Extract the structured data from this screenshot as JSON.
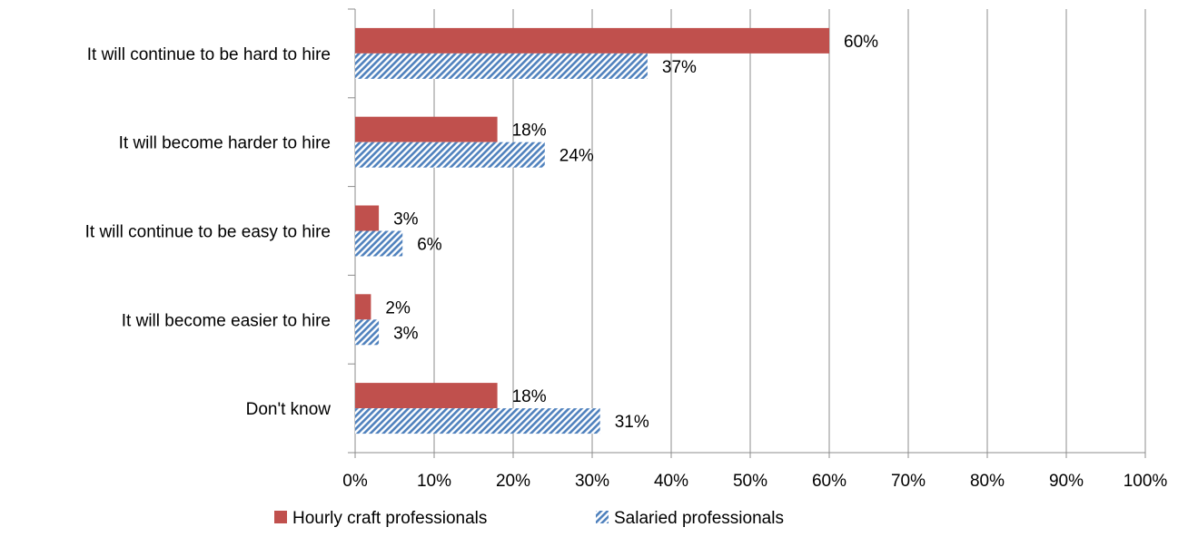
{
  "chart_data": {
    "type": "bar",
    "orientation": "horizontal",
    "categories": [
      "It will continue to be hard to hire",
      "It will become harder to hire",
      "It will continue to be easy to hire",
      "It will become easier to hire",
      "Don't know"
    ],
    "series": [
      {
        "name": "Hourly craft professionals",
        "values": [
          60,
          18,
          3,
          2,
          18
        ],
        "labels": [
          "60%",
          "18%",
          "3%",
          "2%",
          "18%"
        ],
        "color": "#C0504D",
        "fill": "solid"
      },
      {
        "name": "Salaried professionals",
        "values": [
          37,
          24,
          6,
          3,
          31
        ],
        "labels": [
          "37%",
          "24%",
          "6%",
          "3%",
          "31%"
        ],
        "color": "#4F81BD",
        "fill": "hatched"
      }
    ],
    "xlim": [
      0,
      100
    ],
    "xticks": [
      0,
      10,
      20,
      30,
      40,
      50,
      60,
      70,
      80,
      90,
      100
    ],
    "xtick_labels": [
      "0%",
      "10%",
      "20%",
      "30%",
      "40%",
      "50%",
      "60%",
      "70%",
      "80%",
      "90%",
      "100%"
    ],
    "grid": "vertical",
    "legend_position": "bottom",
    "title": "",
    "xlabel": "",
    "ylabel": ""
  }
}
